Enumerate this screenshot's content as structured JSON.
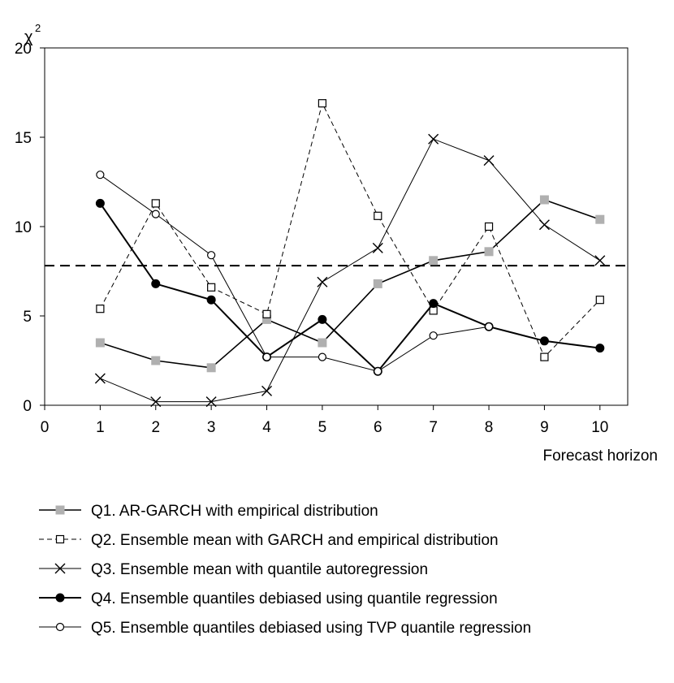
{
  "chart_data": {
    "type": "line",
    "title": "",
    "ylabel": "χ",
    "ylabel_superscript": "2",
    "xlabel": "Forecast horizon",
    "xlim": [
      0,
      10.5
    ],
    "ylim": [
      0,
      20
    ],
    "x_ticks": [
      0,
      1,
      2,
      3,
      4,
      5,
      6,
      7,
      8,
      9,
      10
    ],
    "y_ticks": [
      0,
      5,
      10,
      15,
      20
    ],
    "grid": false,
    "legend_position": "bottom",
    "reference_line": {
      "y": 7.81,
      "style": "dashed"
    },
    "x": [
      1,
      2,
      3,
      4,
      5,
      6,
      7,
      8,
      9,
      10
    ],
    "series": [
      {
        "name": "Q1. AR-GARCH with empirical distribution",
        "values": [
          3.5,
          2.5,
          2.1,
          4.8,
          3.5,
          6.8,
          8.1,
          8.6,
          11.5,
          10.4
        ],
        "line": "solid",
        "line_width": 1.6,
        "marker": "filled-square",
        "color": "#000000",
        "marker_color": "#b0b0b0"
      },
      {
        "name": "Q2. Ensemble mean with GARCH and empirical distribution",
        "values": [
          5.4,
          11.3,
          6.6,
          5.1,
          16.9,
          10.6,
          5.3,
          10.0,
          2.7,
          5.9
        ],
        "line": "dashed",
        "line_width": 1.0,
        "marker": "open-square",
        "color": "#000000",
        "marker_color": "#000000"
      },
      {
        "name": "Q3. Ensemble mean with quantile autoregression",
        "values": [
          1.5,
          0.2,
          0.2,
          0.8,
          6.9,
          8.8,
          14.9,
          13.7,
          10.1,
          8.1
        ],
        "line": "solid",
        "line_width": 1.0,
        "marker": "cross",
        "color": "#000000",
        "marker_color": "#000000"
      },
      {
        "name": "Q4. Ensemble quantiles debiased using quantile regression",
        "values": [
          11.3,
          6.8,
          5.9,
          2.7,
          4.8,
          1.9,
          5.7,
          4.4,
          3.6,
          3.2
        ],
        "line": "solid",
        "line_width": 2.0,
        "marker": "filled-circle",
        "color": "#000000",
        "marker_color": "#000000"
      },
      {
        "name": "Q5. Ensemble quantiles debiased using TVP quantile regression",
        "values": [
          12.9,
          10.7,
          8.4,
          2.7,
          2.7,
          1.9,
          3.9,
          4.4,
          null,
          null
        ],
        "line": "solid",
        "line_width": 1.0,
        "marker": "open-circle",
        "color": "#000000",
        "marker_color": "#000000"
      }
    ]
  }
}
